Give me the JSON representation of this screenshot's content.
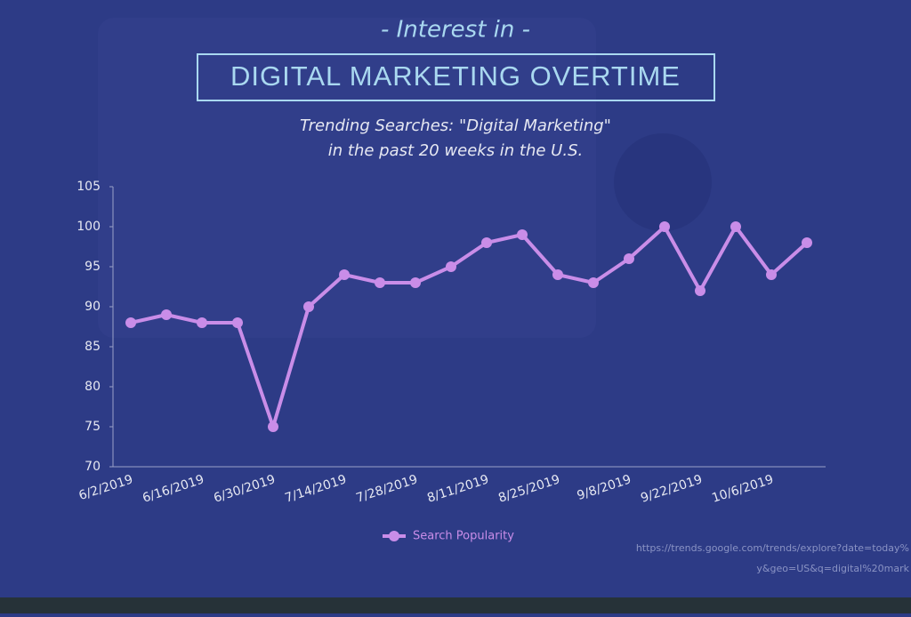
{
  "chart_data": {
    "type": "line",
    "kicker": "- Interest in -",
    "title": "DIGITAL MARKETING OVERTIME",
    "subtitle": [
      "Trending Searches: \"Digital Marketing\"",
      "in the past 20 weeks in the U.S."
    ],
    "categories": [
      "6/2/2019",
      null,
      "6/16/2019",
      null,
      "6/30/2019",
      null,
      "7/14/2019",
      null,
      "7/28/2019",
      null,
      "8/11/2019",
      null,
      "8/25/2019",
      null,
      "9/8/2019",
      null,
      "9/22/2019",
      null,
      "10/6/2019",
      null
    ],
    "series": [
      {
        "name": "Search Popularity",
        "color": "#c98de8",
        "values": [
          88,
          89,
          88,
          88,
          75,
          90,
          94,
          93,
          93,
          95,
          98,
          99,
          94,
          93,
          96,
          100,
          92,
          100,
          94,
          98
        ]
      }
    ],
    "ylim": [
      70,
      105
    ],
    "yticks": [
      70,
      75,
      80,
      85,
      90,
      95,
      100,
      105
    ],
    "grid": false,
    "source": [
      "https://trends.google.com/trends/explore?date=today%",
      "y&geo=US&q=digital%20mark"
    ]
  }
}
